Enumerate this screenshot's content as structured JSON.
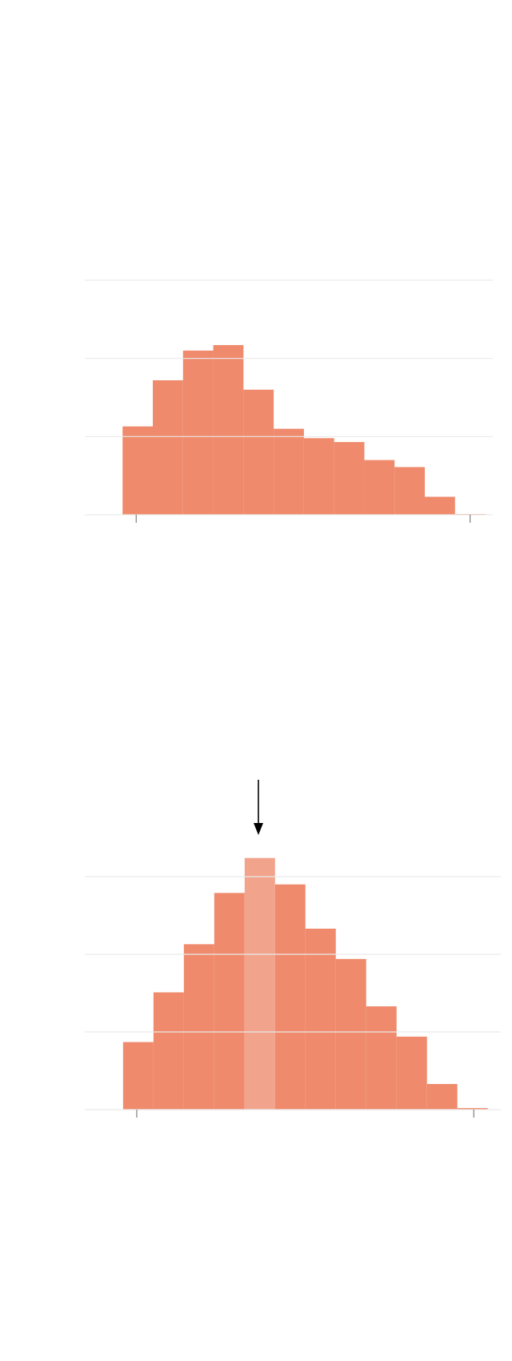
{
  "charts": [
    {
      "type": "histogram",
      "color": "#ef8a6c",
      "bins": [
        0,
        1,
        2,
        3,
        4,
        5,
        6,
        7,
        8,
        9,
        10,
        11,
        12
      ],
      "values": [
        1.13,
        1.72,
        2.1,
        2.17,
        1.6,
        1.1,
        0.98,
        0.93,
        0.7,
        0.61,
        0.23,
        0.01
      ],
      "xlim": [
        -1.25,
        12.25
      ],
      "xticks": [
        0.45,
        11.5
      ],
      "ylim": [
        0,
        3
      ],
      "yticks": [
        0,
        1,
        2,
        3
      ],
      "grid": true
    },
    {
      "type": "histogram",
      "color": "#ef8a6c",
      "bins": [
        0,
        1,
        2,
        3,
        4,
        5,
        6,
        7,
        8,
        9,
        10,
        11,
        12
      ],
      "values": [
        0.87,
        1.51,
        2.13,
        2.79,
        3.24,
        2.9,
        2.33,
        1.94,
        1.33,
        0.94,
        0.33,
        0.02
      ],
      "xlim": [
        -1.26,
        12.43
      ],
      "xticks": [
        0.45,
        11.54
      ],
      "ylim": [
        0,
        3
      ],
      "yticks": [
        0,
        1,
        2,
        3
      ],
      "grid": true,
      "highlight": 4,
      "highlight_color": "#f2a38b"
    }
  ]
}
